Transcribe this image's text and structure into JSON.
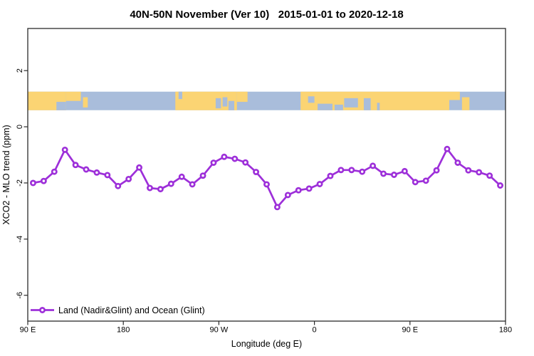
{
  "chart_data": {
    "type": "line",
    "title": "40N-50N November (Ver 10)   2015-01-01 to 2020-12-18",
    "xlabel": "Longitude (deg E)",
    "ylabel": "XCO2 - MLO trend (ppm)",
    "xlim": [
      90,
      540
    ],
    "ylim": [
      -6.92,
      3.5
    ],
    "grid": false,
    "x_tick_lons": [
      90,
      180,
      270,
      360,
      450,
      540
    ],
    "x_tick_labels": [
      "90 E",
      "180",
      "90 W",
      "0",
      "90 E",
      "180"
    ],
    "y_ticks": [
      2,
      0,
      -2,
      -4,
      -6
    ],
    "y_tick_labels": [
      "2",
      "0",
      "-2",
      "-4",
      "-6"
    ],
    "legend_position": "bottom-left",
    "series": [
      {
        "name": "Land (Nadir&Glint) and Ocean (Glint)",
        "color": "#9d2fd9",
        "marker": "open-circle",
        "x": [
          95,
          105,
          115,
          125,
          135,
          145,
          155,
          165,
          175,
          185,
          195,
          205,
          215,
          225,
          235,
          245,
          255,
          265,
          275,
          285,
          295,
          305,
          315,
          325,
          335,
          345,
          355,
          365,
          375,
          385,
          395,
          405,
          415,
          425,
          435,
          445,
          455,
          465,
          475,
          485,
          495,
          505,
          515,
          525,
          535
        ],
        "values": [
          -2.0,
          -1.93,
          -1.6,
          -0.82,
          -1.36,
          -1.52,
          -1.63,
          -1.72,
          -2.11,
          -1.86,
          -1.45,
          -2.18,
          -2.22,
          -2.03,
          -1.78,
          -2.05,
          -1.74,
          -1.28,
          -1.07,
          -1.14,
          -1.27,
          -1.61,
          -2.05,
          -2.86,
          -2.43,
          -2.26,
          -2.2,
          -2.04,
          -1.75,
          -1.54,
          -1.54,
          -1.6,
          -1.39,
          -1.67,
          -1.71,
          -1.58,
          -1.97,
          -1.92,
          -1.55,
          -0.79,
          -1.28,
          -1.55,
          -1.62,
          -1.74,
          -2.09
        ]
      }
    ],
    "map_band": {
      "description": "40N-50N latitude world-map strip",
      "y_range_ppm": [
        0.59,
        1.25
      ],
      "land_color": "#fbd473",
      "ocean_color": "#a9bddb",
      "land_rects": [
        [
          90,
          126,
          0,
          1
        ],
        [
          126,
          140,
          0,
          0.5
        ],
        [
          142,
          146.5,
          0.3,
          0.85
        ],
        [
          229,
          287,
          0,
          1
        ],
        [
          287,
          297,
          0,
          0.55
        ],
        [
          347,
          487,
          0,
          1
        ],
        [
          487,
          497,
          0,
          0.45
        ],
        [
          499,
          506,
          0.3,
          1
        ]
      ],
      "ocean_patches": [
        [
          117,
          126,
          0.55,
          1
        ],
        [
          232,
          235.5,
          0,
          0.4
        ],
        [
          267,
          272,
          0.35,
          0.9
        ],
        [
          273.5,
          278,
          0.3,
          0.8
        ],
        [
          279,
          284.5,
          0.5,
          1
        ],
        [
          354,
          360,
          0.25,
          0.6
        ],
        [
          363,
          377,
          0.65,
          1
        ],
        [
          379,
          387,
          0.7,
          1
        ],
        [
          388,
          401,
          0.35,
          0.85
        ],
        [
          406.5,
          413,
          0.35,
          1
        ],
        [
          419,
          421.5,
          0.6,
          1
        ]
      ]
    },
    "axis_color": "#2b2b2b",
    "background_color": "#ffffff"
  }
}
